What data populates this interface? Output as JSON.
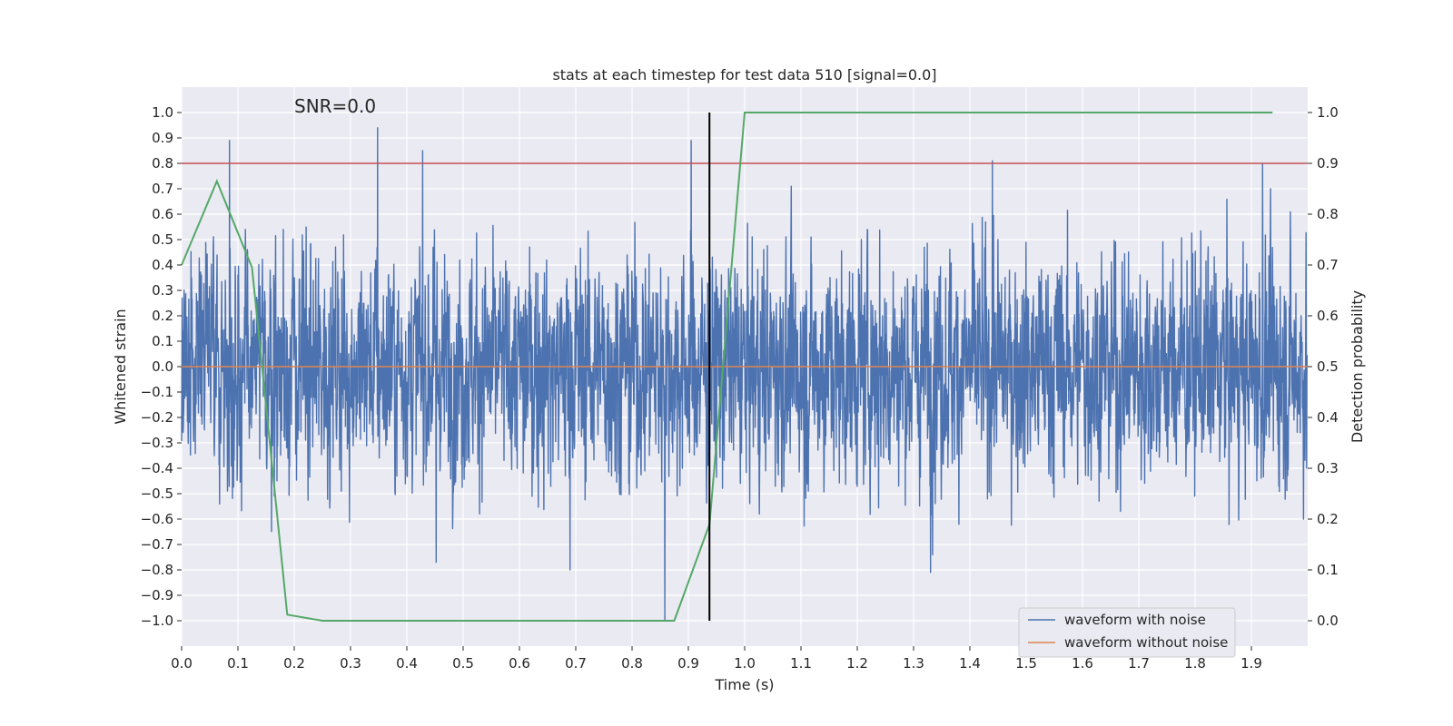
{
  "chart_data": {
    "type": "line",
    "title": "stats at each timestep for test data 510 [signal=0.0]",
    "xlabel": "Time (s)",
    "ylabel": "Whitened strain",
    "ylabel_right": "Detection probability",
    "annotation": "SNR=0.0",
    "xlim": [
      0.0,
      2.0
    ],
    "ylim": [
      -1.1,
      1.1
    ],
    "ylim_right": [
      -0.05,
      1.05
    ],
    "x_ticks": [
      0.0,
      0.1,
      0.2,
      0.3,
      0.4,
      0.5,
      0.6,
      0.7,
      0.8,
      0.9,
      1.0,
      1.1,
      1.2,
      1.3,
      1.4,
      1.5,
      1.6,
      1.7,
      1.8,
      1.9
    ],
    "y_ticks": [
      -1.0,
      -0.9,
      -0.8,
      -0.7,
      -0.6,
      -0.5,
      -0.4,
      -0.3,
      -0.2,
      -0.1,
      0.0,
      0.1,
      0.2,
      0.3,
      0.4,
      0.5,
      0.6,
      0.7,
      0.8,
      0.9,
      1.0
    ],
    "y_ticks_right": [
      0.0,
      0.1,
      0.2,
      0.3,
      0.4,
      0.5,
      0.6,
      0.7,
      0.8,
      0.9,
      1.0
    ],
    "grid": true,
    "legend_position": "lower-right",
    "series": [
      {
        "name": "waveform with noise",
        "color": "#4c72b0",
        "axis": "left",
        "generated": true,
        "n_points": 4096,
        "x_range": [
          0.0,
          1.999
        ],
        "amplitude_std": 0.22,
        "peaks": [
          {
            "x": 0.085,
            "y": 0.89
          },
          {
            "x": 0.348,
            "y": 0.94
          },
          {
            "x": 0.428,
            "y": 0.85
          },
          {
            "x": 0.452,
            "y": -0.77
          },
          {
            "x": 0.69,
            "y": -0.8
          },
          {
            "x": 0.858,
            "y": -1.0
          },
          {
            "x": 0.905,
            "y": 0.89
          },
          {
            "x": 1.33,
            "y": -0.81
          },
          {
            "x": 1.44,
            "y": 0.81
          },
          {
            "x": 1.92,
            "y": 0.8
          }
        ]
      },
      {
        "name": "waveform without noise",
        "color": "#dd8452",
        "axis": "left",
        "x": [
          0.0,
          2.0
        ],
        "y": [
          0.0,
          0.0
        ]
      },
      {
        "name": "",
        "color": "#55a868",
        "axis": "right",
        "x": [
          0.0,
          0.0625,
          0.125,
          0.1875,
          0.25,
          0.5625,
          0.6875,
          0.8125,
          0.875,
          0.9375,
          1.0,
          1.9375
        ],
        "y": [
          0.7,
          0.865,
          0.695,
          0.012,
          0.0,
          0.0,
          0.0,
          0.0,
          0.0,
          0.19,
          1.0,
          1.0
        ]
      }
    ],
    "threshold_line": {
      "axis": "right",
      "y": 0.9,
      "color": "#c44e52"
    },
    "marker_line": {
      "x": 0.9375,
      "y_range_right": [
        0.0,
        1.0
      ],
      "color": "#000000"
    }
  }
}
